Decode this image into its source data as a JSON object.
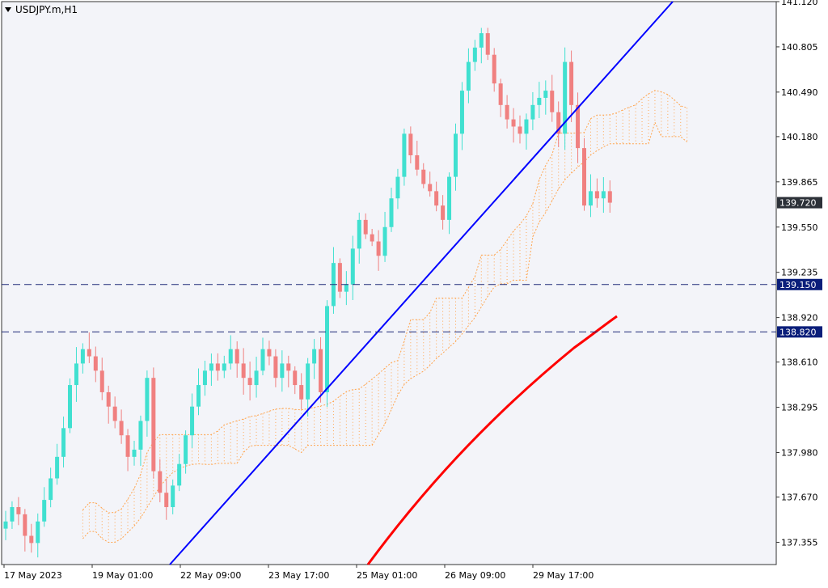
{
  "chart_data": {
    "type": "candlestick",
    "symbol_label": "USDJPY.m,H1",
    "y_axis": {
      "min": 137.2,
      "max": 141.12,
      "ticks": [
        "141.120",
        "140.805",
        "140.490",
        "140.180",
        "139.865",
        "139.550",
        "139.235",
        "138.920",
        "138.610",
        "138.295",
        "137.980",
        "137.670",
        "137.355"
      ]
    },
    "x_axis": {
      "labels": [
        "17 May 2023",
        "19 May 01:00",
        "22 May 09:00",
        "23 May 17:00",
        "25 May 01:00",
        "26 May 09:00",
        "29 May 17:00"
      ]
    },
    "current_price": "139.720",
    "horizontal_levels": [
      {
        "value": 139.15,
        "label": "139.150"
      },
      {
        "value": 138.82,
        "label": "138.820"
      }
    ],
    "closes": [
      137.5,
      137.6,
      137.55,
      137.4,
      137.35,
      137.5,
      137.65,
      137.8,
      137.95,
      138.15,
      138.45,
      138.6,
      138.7,
      138.65,
      138.55,
      138.4,
      138.3,
      138.2,
      138.1,
      137.95,
      138.0,
      138.2,
      138.5,
      137.85,
      137.7,
      137.6,
      137.75,
      137.9,
      138.1,
      138.3,
      138.45,
      138.55,
      138.6,
      138.55,
      138.6,
      138.7,
      138.6,
      138.5,
      138.45,
      138.55,
      138.7,
      138.65,
      138.5,
      138.6,
      138.55,
      138.45,
      138.35,
      138.6,
      138.7,
      138.4,
      139.0,
      139.3,
      139.1,
      139.15,
      139.4,
      139.6,
      139.5,
      139.45,
      139.35,
      139.55,
      139.75,
      139.9,
      140.2,
      140.05,
      139.95,
      139.85,
      139.8,
      139.7,
      139.6,
      139.9,
      140.2,
      140.5,
      140.7,
      140.8,
      140.9,
      140.75,
      140.55,
      140.4,
      140.3,
      140.25,
      140.2,
      140.3,
      140.4,
      140.45,
      140.5,
      140.35,
      140.2,
      140.7,
      140.4,
      140.1,
      139.7,
      139.8,
      139.75,
      139.8,
      139.72
    ],
    "indicators": {
      "trendline": {
        "color": "#0000ff"
      },
      "moving_average": {
        "color": "#ff0000"
      },
      "cloud": {
        "color": "#ffa54f"
      }
    },
    "colors": {
      "bull": "#40e0d0",
      "bear": "#f08080",
      "background": "#f3f4f9",
      "level_line": "#1e2a78",
      "level_label_bg": "#0a1e7a",
      "price_label_bg": "#2c3138"
    }
  }
}
